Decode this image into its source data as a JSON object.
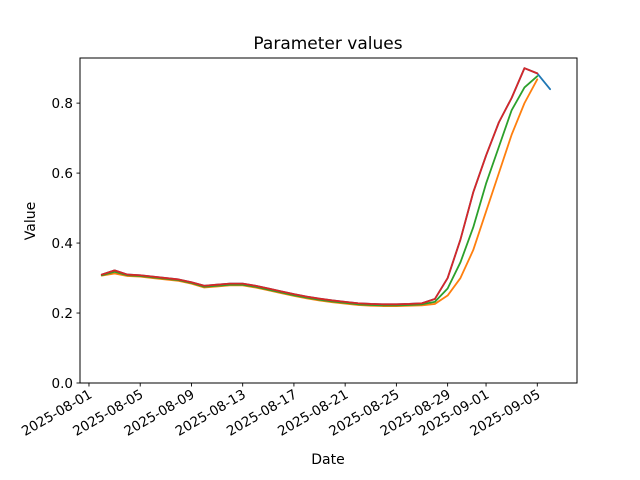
{
  "figure": {
    "title": "Parameter values",
    "xlabel": "Date",
    "ylabel": "Value"
  },
  "chart_data": {
    "type": "line",
    "title": "Parameter values",
    "xlabel": "Date",
    "ylabel": "Value",
    "grid": false,
    "legend": "none",
    "x_epoch": "2025-08-01",
    "xlim_days": [
      -0.7,
      38.1
    ],
    "ylim": [
      0.0,
      0.929
    ],
    "x_ticks": [
      "2025-08-01",
      "2025-08-05",
      "2025-08-09",
      "2025-08-13",
      "2025-08-17",
      "2025-08-21",
      "2025-08-25",
      "2025-08-29",
      "2025-09-01",
      "2025-09-05"
    ],
    "x_tick_rotation_deg": 30,
    "y_ticks": [
      0.0,
      0.2,
      0.4,
      0.6,
      0.8
    ],
    "y_tick_labels": [
      "0.0",
      "0.2",
      "0.4",
      "0.6",
      "0.8"
    ],
    "dates": [
      "2025-08-02",
      "2025-08-03",
      "2025-08-04",
      "2025-08-05",
      "2025-08-06",
      "2025-08-07",
      "2025-08-08",
      "2025-08-09",
      "2025-08-10",
      "2025-08-11",
      "2025-08-12",
      "2025-08-13",
      "2025-08-14",
      "2025-08-15",
      "2025-08-16",
      "2025-08-17",
      "2025-08-18",
      "2025-08-19",
      "2025-08-20",
      "2025-08-21",
      "2025-08-22",
      "2025-08-23",
      "2025-08-24",
      "2025-08-25",
      "2025-08-26",
      "2025-08-27",
      "2025-08-28",
      "2025-08-29",
      "2025-08-30",
      "2025-08-31",
      "2025-09-01",
      "2025-09-02",
      "2025-09-03",
      "2025-09-04",
      "2025-09-05",
      "2025-09-06"
    ],
    "series": [
      {
        "color_name": "blue",
        "color": "#1f77b4",
        "values": [
          0.31,
          0.322,
          0.31,
          0.308,
          0.304,
          0.3,
          0.296,
          0.288,
          0.278,
          0.281,
          0.284,
          0.284,
          0.278,
          0.27,
          0.262,
          0.254,
          0.247,
          0.241,
          0.236,
          0.232,
          0.228,
          0.226,
          0.225,
          0.225,
          0.226,
          0.228,
          0.24,
          0.3,
          0.41,
          0.545,
          0.65,
          0.745,
          0.815,
          0.9,
          0.885,
          0.84
        ]
      },
      {
        "color_name": "orange",
        "color": "#ff7f0e",
        "values": [
          0.307,
          0.313,
          0.306,
          0.304,
          0.3,
          0.296,
          0.292,
          0.284,
          0.273,
          0.276,
          0.279,
          0.279,
          0.273,
          0.265,
          0.257,
          0.249,
          0.242,
          0.236,
          0.231,
          0.227,
          0.223,
          0.221,
          0.22,
          0.22,
          0.221,
          0.222,
          0.226,
          0.25,
          0.3,
          0.38,
          0.49,
          0.6,
          0.71,
          0.8,
          0.868,
          null
        ]
      },
      {
        "color_name": "green",
        "color": "#2ca02c",
        "values": [
          0.308,
          0.318,
          0.308,
          0.306,
          0.302,
          0.298,
          0.294,
          0.286,
          0.275,
          0.278,
          0.281,
          0.281,
          0.275,
          0.267,
          0.259,
          0.251,
          0.244,
          0.238,
          0.233,
          0.229,
          0.225,
          0.223,
          0.222,
          0.222,
          0.223,
          0.225,
          0.232,
          0.27,
          0.345,
          0.445,
          0.57,
          0.675,
          0.78,
          0.845,
          0.877,
          null
        ]
      },
      {
        "color_name": "red",
        "color": "#d62728",
        "values": [
          0.31,
          0.322,
          0.31,
          0.308,
          0.304,
          0.3,
          0.296,
          0.288,
          0.278,
          0.281,
          0.284,
          0.284,
          0.278,
          0.27,
          0.262,
          0.254,
          0.247,
          0.241,
          0.236,
          0.232,
          0.228,
          0.226,
          0.225,
          0.225,
          0.226,
          0.228,
          0.24,
          0.3,
          0.41,
          0.545,
          0.65,
          0.745,
          0.815,
          0.9,
          0.885,
          null
        ]
      }
    ]
  }
}
